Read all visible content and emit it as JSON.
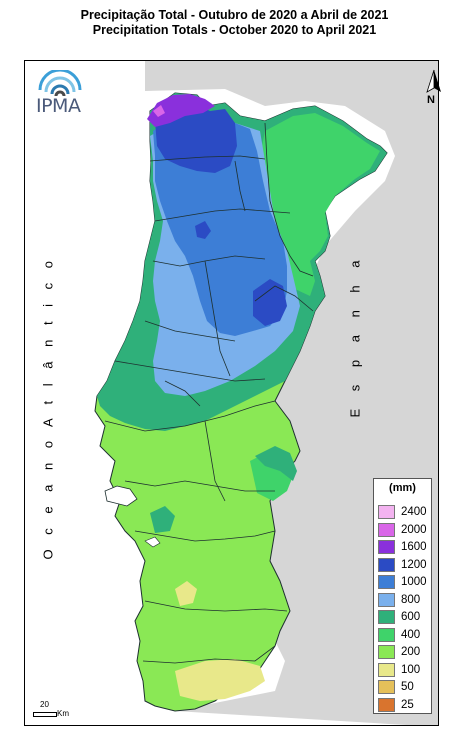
{
  "title_pt": "Precipitação Total  - Outubro de 2020 a Abril de 2021",
  "title_en": "Precipitation Totals - October 2020 to April 2021",
  "ocean_label": "O c e a n o   A t l â n t i c o",
  "spain_label": "E s p a n h a",
  "logo_text": "IPMA",
  "north_label": "N",
  "scale": {
    "value": "20",
    "unit": "Km"
  },
  "legend": {
    "unit": "(mm)",
    "classes": [
      {
        "label": "2400",
        "color": "#f3b3f0"
      },
      {
        "label": "2000",
        "color": "#d966e8"
      },
      {
        "label": "1600",
        "color": "#8a30dc"
      },
      {
        "label": "1200",
        "color": "#2b4bc4"
      },
      {
        "label": "1000",
        "color": "#3d7ed6"
      },
      {
        "label": "800",
        "color": "#7ab0ec"
      },
      {
        "label": "600",
        "color": "#2fb07a"
      },
      {
        "label": "400",
        "color": "#3fd36a"
      },
      {
        "label": "200",
        "color": "#8ae855"
      },
      {
        "label": "100",
        "color": "#e8e88a"
      },
      {
        "label": "50",
        "color": "#e5c05a"
      },
      {
        "label": "25",
        "color": "#d9742e"
      }
    ]
  },
  "colors": {
    "land_outside": "#d6d6d6",
    "sea": "#ffffff",
    "border": "#1e3030"
  }
}
